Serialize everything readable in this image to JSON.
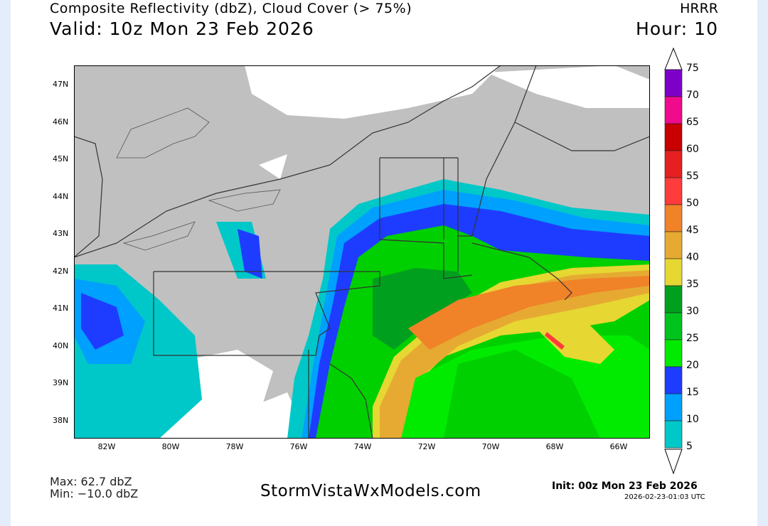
{
  "header": {
    "title": "Composite Reflectivity (dbZ), Cloud Cover (> 75%)",
    "valid": "Valid: 10z Mon 23 Feb 2026",
    "model": "HRRR",
    "hour": "Hour: 10"
  },
  "map": {
    "lat_labels": [
      "47N",
      "46N",
      "45N",
      "44N",
      "43N",
      "42N",
      "41N",
      "40N",
      "39N",
      "38N"
    ],
    "lon_labels": [
      "82W",
      "80W",
      "78W",
      "76W",
      "74W",
      "72W",
      "70W",
      "68W",
      "66W"
    ],
    "background_color": "#c0c0c0",
    "clear_sky_color": "#ffffff"
  },
  "colorbar": {
    "labels": [
      "75",
      "70",
      "65",
      "60",
      "55",
      "50",
      "45",
      "40",
      "35",
      "30",
      "25",
      "20",
      "15",
      "10",
      "5"
    ],
    "colors_top_to_bottom": [
      "#7d00c8",
      "#f00a8c",
      "#c80000",
      "#e62020",
      "#ff3c3c",
      "#f08228",
      "#e6aa32",
      "#e6d732",
      "#00a01e",
      "#00c31e",
      "#00eb00",
      "#1e3cff",
      "#00a0ff",
      "#00c8c8"
    ]
  },
  "footer": {
    "max": "Max: 62.7 dbZ",
    "min": "Min: −10.0 dbZ",
    "site": "StormVistaWxModels.com",
    "init": "Init: 00z Mon 23 Feb 2026",
    "timestamp": "2026-02-23-01:03 UTC"
  }
}
